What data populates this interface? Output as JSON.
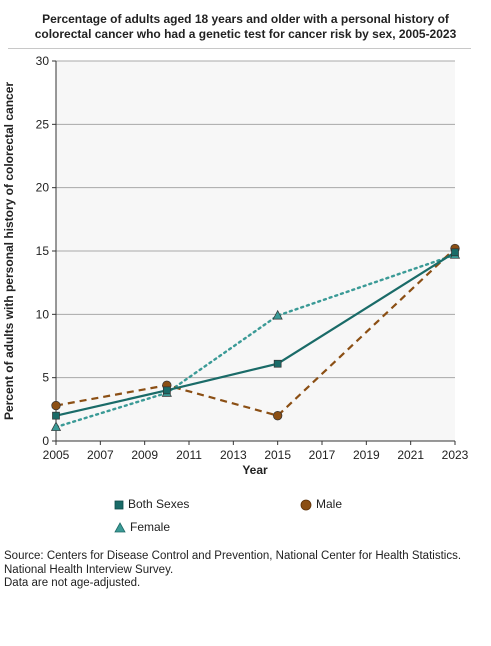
{
  "chart_data": {
    "type": "line",
    "title_lines": [
      "Percentage of adults aged 18 years and older with a personal history of",
      "colorectal cancer  who had a genetic test for cancer risk by sex, 2005-2023"
    ],
    "xlabel": "Year",
    "ylabel": "Percent of adults with personal history of colorectal cancer",
    "xlim": [
      2005,
      2023
    ],
    "ylim": [
      0,
      30
    ],
    "x_ticks": [
      "2005",
      "2007",
      "2009",
      "2011",
      "2013",
      "2015",
      "2017",
      "2019",
      "2021",
      "2023"
    ],
    "y_ticks": [
      "0",
      "5",
      "10",
      "15",
      "20",
      "25",
      "30"
    ],
    "grid": "horizontal",
    "legend_placement": "bottom",
    "series": [
      {
        "name": "Both Sexes",
        "color": "#1a6b68",
        "marker": "square",
        "line_style": "solid",
        "x": [
          2005,
          2010,
          2015,
          2023
        ],
        "values": [
          2.0,
          4.0,
          6.1,
          14.9
        ]
      },
      {
        "name": "Male",
        "color": "#8b4f14",
        "marker": "circle",
        "line_style": "dashed",
        "x": [
          2005,
          2010,
          2015,
          2023
        ],
        "values": [
          2.8,
          4.4,
          2.0,
          15.2
        ]
      },
      {
        "name": "Female",
        "color": "#3a9a96",
        "marker": "triangle",
        "line_style": "dotted",
        "x": [
          2005,
          2010,
          2015,
          2023
        ],
        "values": [
          1.1,
          3.8,
          9.9,
          14.7
        ]
      }
    ]
  },
  "source_lines": [
    "Source: Centers for Disease Control and Prevention, National Center for Health Statistics.",
    "National Health Interview Survey.",
    "Data are not age-adjusted."
  ]
}
